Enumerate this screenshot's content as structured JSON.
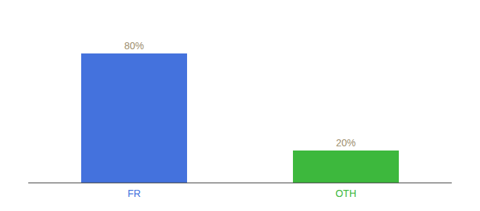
{
  "chart_data": {
    "type": "bar",
    "categories": [
      "FR",
      "OTH"
    ],
    "values": [
      80,
      20
    ],
    "value_labels": [
      "80%",
      "20%"
    ],
    "colors": [
      "#4472dd",
      "#3db83d"
    ],
    "ylim": [
      0,
      100
    ],
    "data_labels": true,
    "tick_labels": "x",
    "grid": false
  }
}
